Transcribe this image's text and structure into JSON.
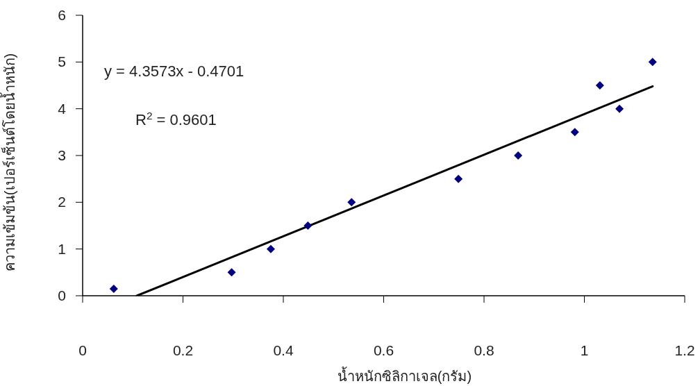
{
  "chart_data": {
    "type": "scatter",
    "xlabel": "น้ำหนักซิลิกาเจล(กรัม)",
    "ylabel": "ความเข้มข้น(เปอร์เซ็นต์โดยน้ำหนัก)",
    "annotations": [
      "y = 4.3573x - 0.4701",
      "R$^{2}$ = 0.9601"
    ],
    "xlim": [
      0,
      1.2
    ],
    "xticks": [
      0,
      0.2,
      0.4,
      0.6,
      0.8,
      1,
      1.2
    ],
    "ylim": [
      0,
      6
    ],
    "yticks": [
      0,
      1,
      2,
      3,
      4,
      5,
      6
    ],
    "grid": false,
    "series": [
      {
        "color": "#000080",
        "marker": "diamond",
        "x": [
          0.062,
          0.297,
          0.375,
          0.449,
          0.536,
          0.749,
          0.868,
          0.981,
          1.031,
          1.07,
          1.136
        ],
        "values": [
          0.15,
          0.5,
          1,
          1.5,
          2,
          2.5,
          3,
          3.5,
          4.5,
          4,
          5
        ]
      },
      {
        "type": "line",
        "color": "#000000",
        "line_style": "solid",
        "marker": "none",
        "x": [
          0.108,
          1.136
        ],
        "values": [
          0,
          4.48
        ]
      }
    ]
  }
}
